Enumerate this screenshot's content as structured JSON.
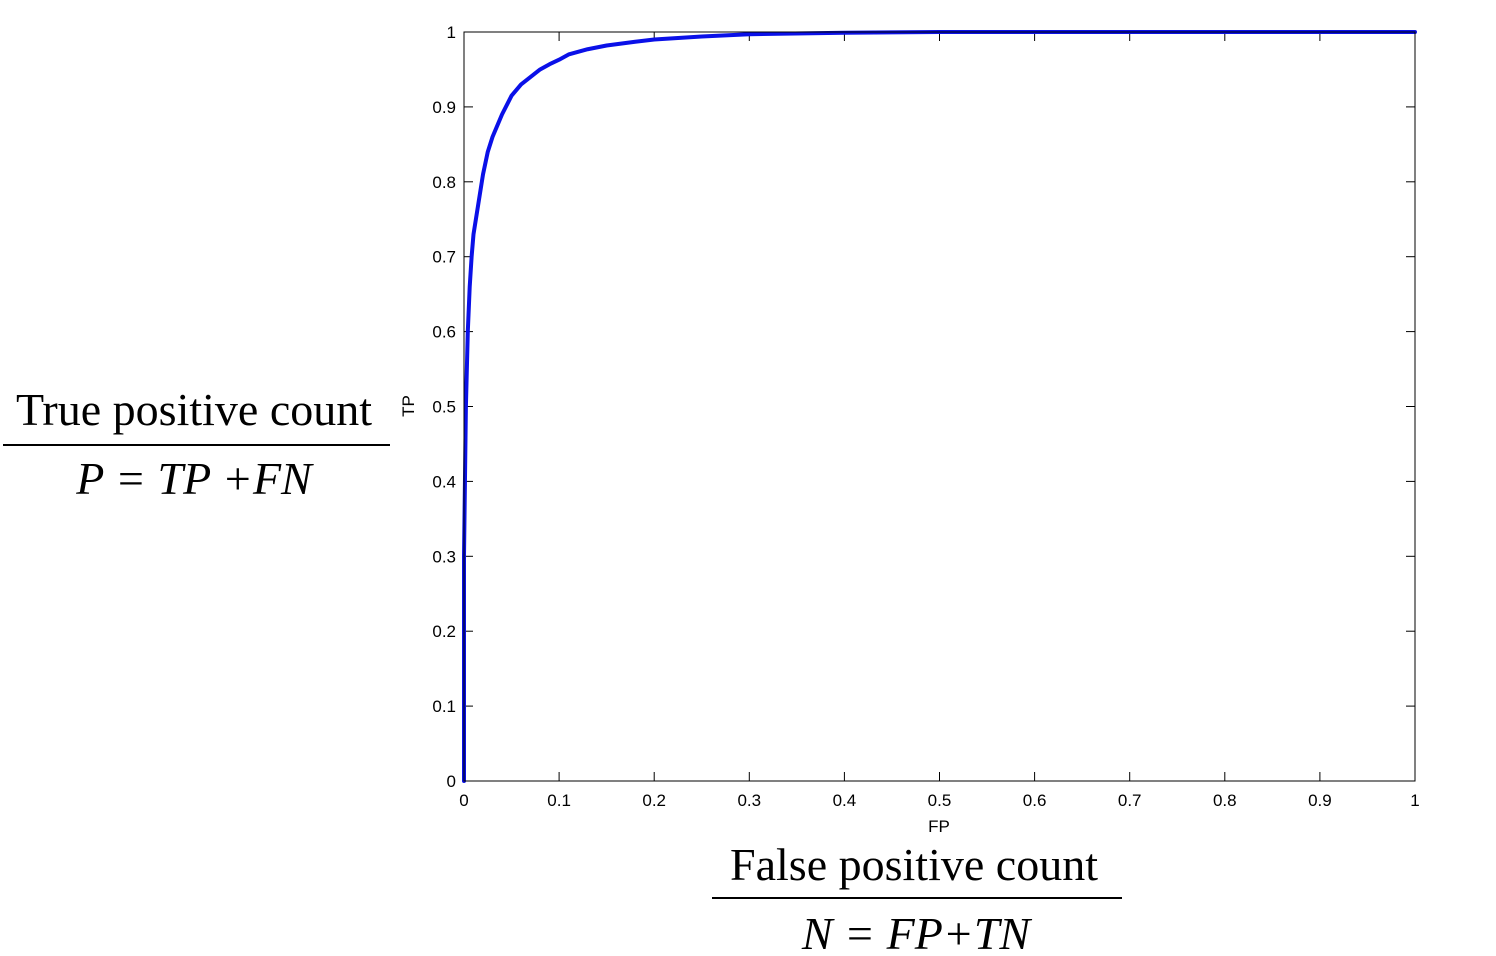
{
  "chart_data": {
    "type": "line",
    "title": "",
    "xlabel": "FP",
    "ylabel": "TP",
    "xlim": [
      0,
      1
    ],
    "ylim": [
      0,
      1
    ],
    "x_ticks": [
      "0",
      "0.1",
      "0.2",
      "0.3",
      "0.4",
      "0.5",
      "0.6",
      "0.7",
      "0.8",
      "0.9",
      "1"
    ],
    "y_ticks": [
      "0",
      "0.1",
      "0.2",
      "0.3",
      "0.4",
      "0.5",
      "0.6",
      "0.7",
      "0.8",
      "0.9",
      "1"
    ],
    "grid": false,
    "series": [
      {
        "color": "#0a10e8",
        "x": [
          0,
          0,
          0.002,
          0.004,
          0.006,
          0.008,
          0.01,
          0.015,
          0.02,
          0.025,
          0.03,
          0.04,
          0.05,
          0.06,
          0.07,
          0.08,
          0.09,
          0.1,
          0.11,
          0.13,
          0.15,
          0.18,
          0.2,
          0.25,
          0.3,
          0.4,
          0.5,
          0.6,
          0.7,
          0.8,
          0.9,
          1.0
        ],
        "y": [
          0,
          0.3,
          0.5,
          0.6,
          0.66,
          0.7,
          0.73,
          0.77,
          0.81,
          0.84,
          0.86,
          0.89,
          0.915,
          0.93,
          0.94,
          0.95,
          0.957,
          0.963,
          0.97,
          0.977,
          0.982,
          0.987,
          0.99,
          0.994,
          0.997,
          0.999,
          1.0,
          1.0,
          1.0,
          1.0,
          1.0,
          1.0
        ]
      }
    ]
  },
  "annotations": {
    "left_fraction": {
      "numerator": "True positive  count",
      "denominator": "P = TP +FN"
    },
    "bottom_fraction": {
      "numerator": "False positive  count",
      "denominator": "N = FP+TN"
    }
  },
  "colors": {
    "line": "#0a10e8",
    "axes": "#000000",
    "background": "#ffffff"
  }
}
